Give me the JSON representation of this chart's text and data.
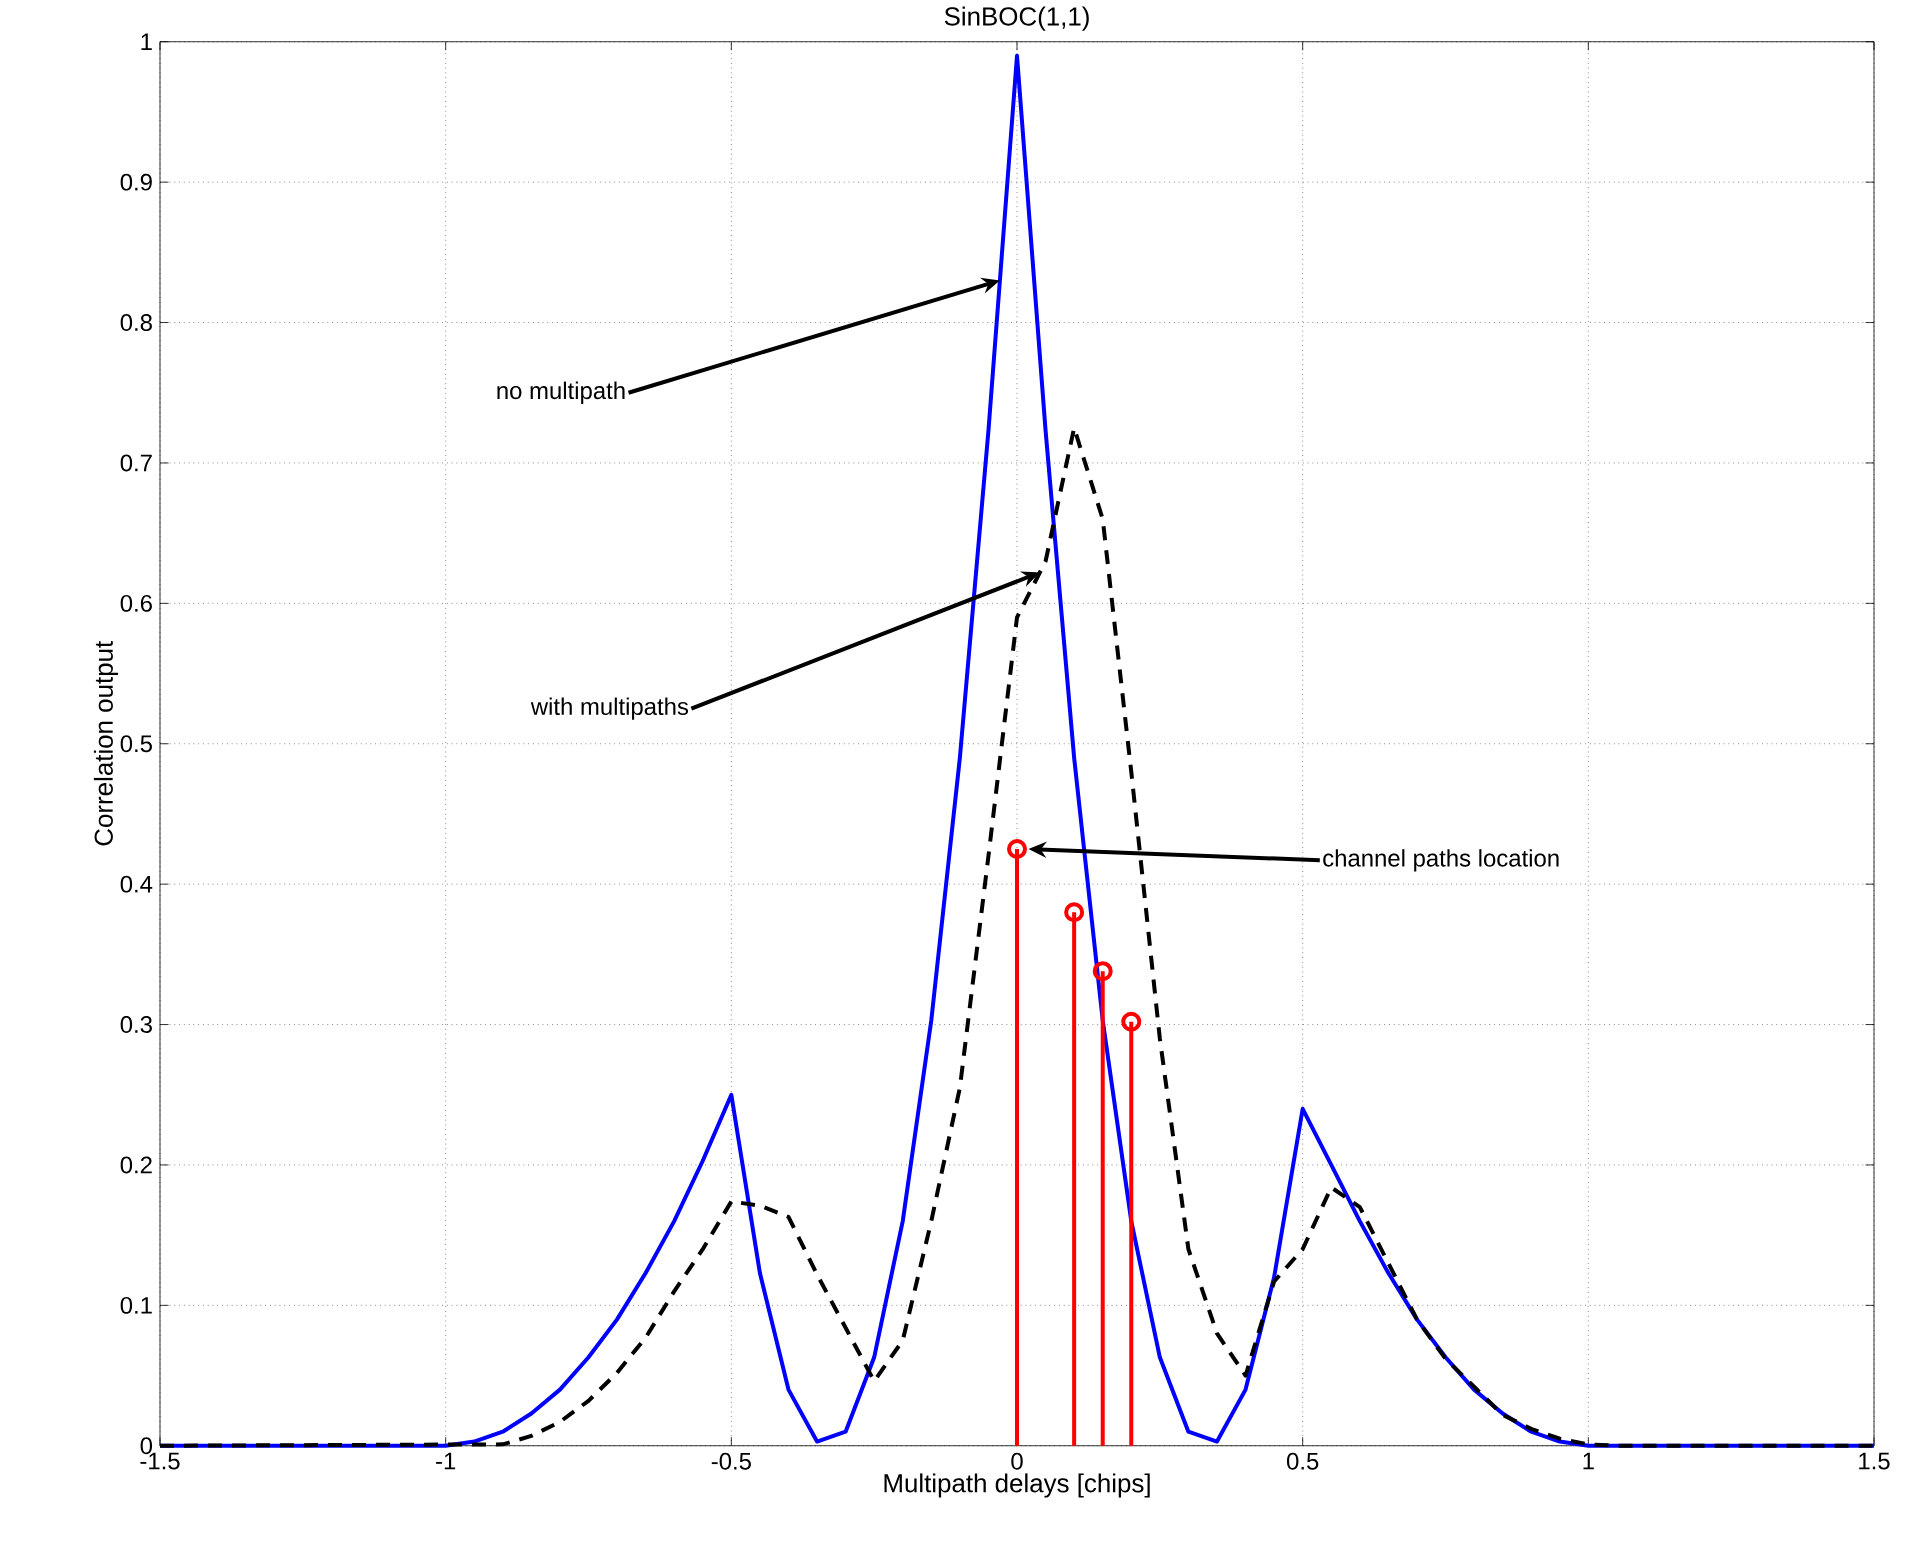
{
  "chart_data": {
    "type": "line",
    "title": "SinBOC(1,1)",
    "xlabel": "Multipath delays [chips]",
    "ylabel": "Correlation output",
    "xlim": [
      -1.5,
      1.5
    ],
    "ylim": [
      0,
      1
    ],
    "xticks": [
      -1.5,
      -1,
      -0.5,
      0,
      0.5,
      1,
      1.5
    ],
    "yticks": [
      0,
      0.1,
      0.2,
      0.3,
      0.4,
      0.5,
      0.6,
      0.7,
      0.8,
      0.9,
      1
    ],
    "grid": true,
    "series": [
      {
        "color": "#0000ff",
        "line_style": "solid",
        "marker": "none",
        "x": [
          -1.5,
          -1,
          -0.95,
          -0.9,
          -0.85,
          -0.8,
          -0.75,
          -0.7,
          -0.65,
          -0.6,
          -0.55,
          -0.5,
          -0.45,
          -0.4,
          -0.35,
          -0.3,
          -0.25,
          -0.2,
          -0.15,
          -0.1,
          -0.05,
          0,
          0.05,
          0.1,
          0.15,
          0.2,
          0.25,
          0.3,
          0.35,
          0.4,
          0.45,
          0.5,
          0.55,
          0.6,
          0.65,
          0.7,
          0.75,
          0.8,
          0.85,
          0.9,
          0.95,
          1,
          1.5
        ],
        "values": [
          0,
          0,
          0.003,
          0.01,
          0.023,
          0.04,
          0.063,
          0.09,
          0.123,
          0.16,
          0.203,
          0.25,
          0.123,
          0.04,
          0.003,
          0.01,
          0.063,
          0.16,
          0.303,
          0.49,
          0.723,
          0.99,
          0.723,
          0.49,
          0.303,
          0.16,
          0.063,
          0.01,
          0.003,
          0.04,
          0.12,
          0.24,
          0.2,
          0.16,
          0.123,
          0.09,
          0.063,
          0.04,
          0.023,
          0.01,
          0.003,
          0,
          0
        ]
      },
      {
        "color": "#000000",
        "line_style": "dashed",
        "marker": "none",
        "x": [
          -1.5,
          -0.9,
          -0.85,
          -0.8,
          -0.75,
          -0.7,
          -0.65,
          -0.6,
          -0.55,
          -0.5,
          -0.45,
          -0.4,
          -0.35,
          -0.3,
          -0.25,
          -0.2,
          -0.15,
          -0.1,
          -0.05,
          0,
          0.05,
          0.1,
          0.15,
          0.2,
          0.25,
          0.3,
          0.35,
          0.4,
          0.45,
          0.5,
          0.55,
          0.6,
          0.65,
          0.7,
          0.75,
          0.8,
          0.85,
          0.9,
          0.95,
          1,
          1.05,
          1.5
        ],
        "values": [
          0,
          0.001,
          0.007,
          0.017,
          0.032,
          0.052,
          0.077,
          0.11,
          0.14,
          0.174,
          0.171,
          0.163,
          0.122,
          0.084,
          0.046,
          0.075,
          0.16,
          0.255,
          0.42,
          0.59,
          0.63,
          0.725,
          0.66,
          0.48,
          0.29,
          0.14,
          0.08,
          0.05,
          0.117,
          0.14,
          0.184,
          0.17,
          0.13,
          0.09,
          0.062,
          0.042,
          0.022,
          0.012,
          0.005,
          0.001,
          0,
          0
        ]
      },
      {
        "type": "lollipop",
        "color": "#ff0000",
        "marker": "circle",
        "x": [
          0,
          0.1,
          0.15,
          0.2
        ],
        "values": [
          0.425,
          0.38,
          0.338,
          0.302
        ]
      }
    ],
    "annotations": [
      {
        "text": "no multipath",
        "x": -0.03,
        "y": 0.83
      },
      {
        "text": "with multipaths",
        "x": 0.04,
        "y": 0.622
      },
      {
        "text": "channel paths location",
        "x": 0.02,
        "y": 0.425
      }
    ]
  }
}
